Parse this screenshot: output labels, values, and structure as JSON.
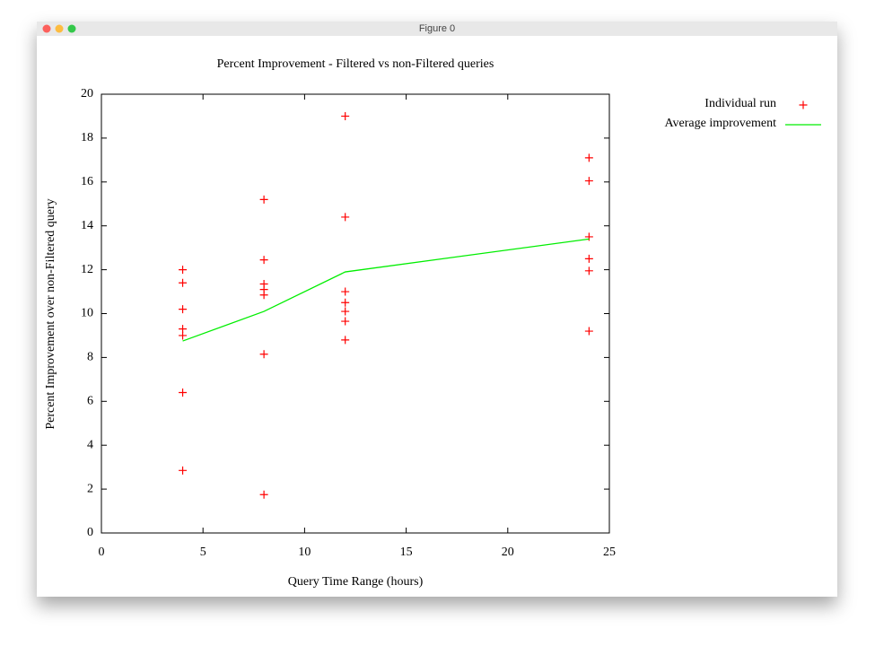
{
  "window": {
    "title": "Figure 0"
  },
  "chart_data": {
    "type": "scatter",
    "title": "Percent Improvement - Filtered vs non-Filtered queries",
    "x_label": "Query Time Range (hours)",
    "y_label": "Percent Improvement over non-Filtered query",
    "xlim": [
      0,
      25
    ],
    "xticks": [
      0,
      5,
      10,
      15,
      20,
      25
    ],
    "ylim": [
      0,
      20
    ],
    "yticks": [
      0,
      2,
      4,
      6,
      8,
      10,
      12,
      14,
      16,
      18,
      20
    ],
    "grid": false,
    "legend": "right",
    "series": [
      {
        "name": "Individual run",
        "color": "#ff0000",
        "mode": "markers",
        "x": [
          4,
          4,
          4,
          4,
          4,
          4,
          4,
          8,
          8,
          8,
          8,
          8,
          8,
          8,
          12,
          12,
          12,
          12,
          12,
          12,
          12,
          24,
          24,
          24,
          24,
          24,
          24
        ],
        "values": [
          12.0,
          11.4,
          10.2,
          9.3,
          9.0,
          6.4,
          2.85,
          15.2,
          12.45,
          11.35,
          11.1,
          10.85,
          8.15,
          1.75,
          19.0,
          14.4,
          11.0,
          10.5,
          10.1,
          9.65,
          8.8,
          17.1,
          16.05,
          13.5,
          12.5,
          11.95,
          9.2
        ]
      },
      {
        "name": "Average improvement",
        "color": "#00ee00",
        "mode": "line",
        "x": [
          4,
          8,
          12,
          24
        ],
        "values": [
          8.75,
          10.1,
          11.9,
          13.4
        ]
      }
    ]
  }
}
